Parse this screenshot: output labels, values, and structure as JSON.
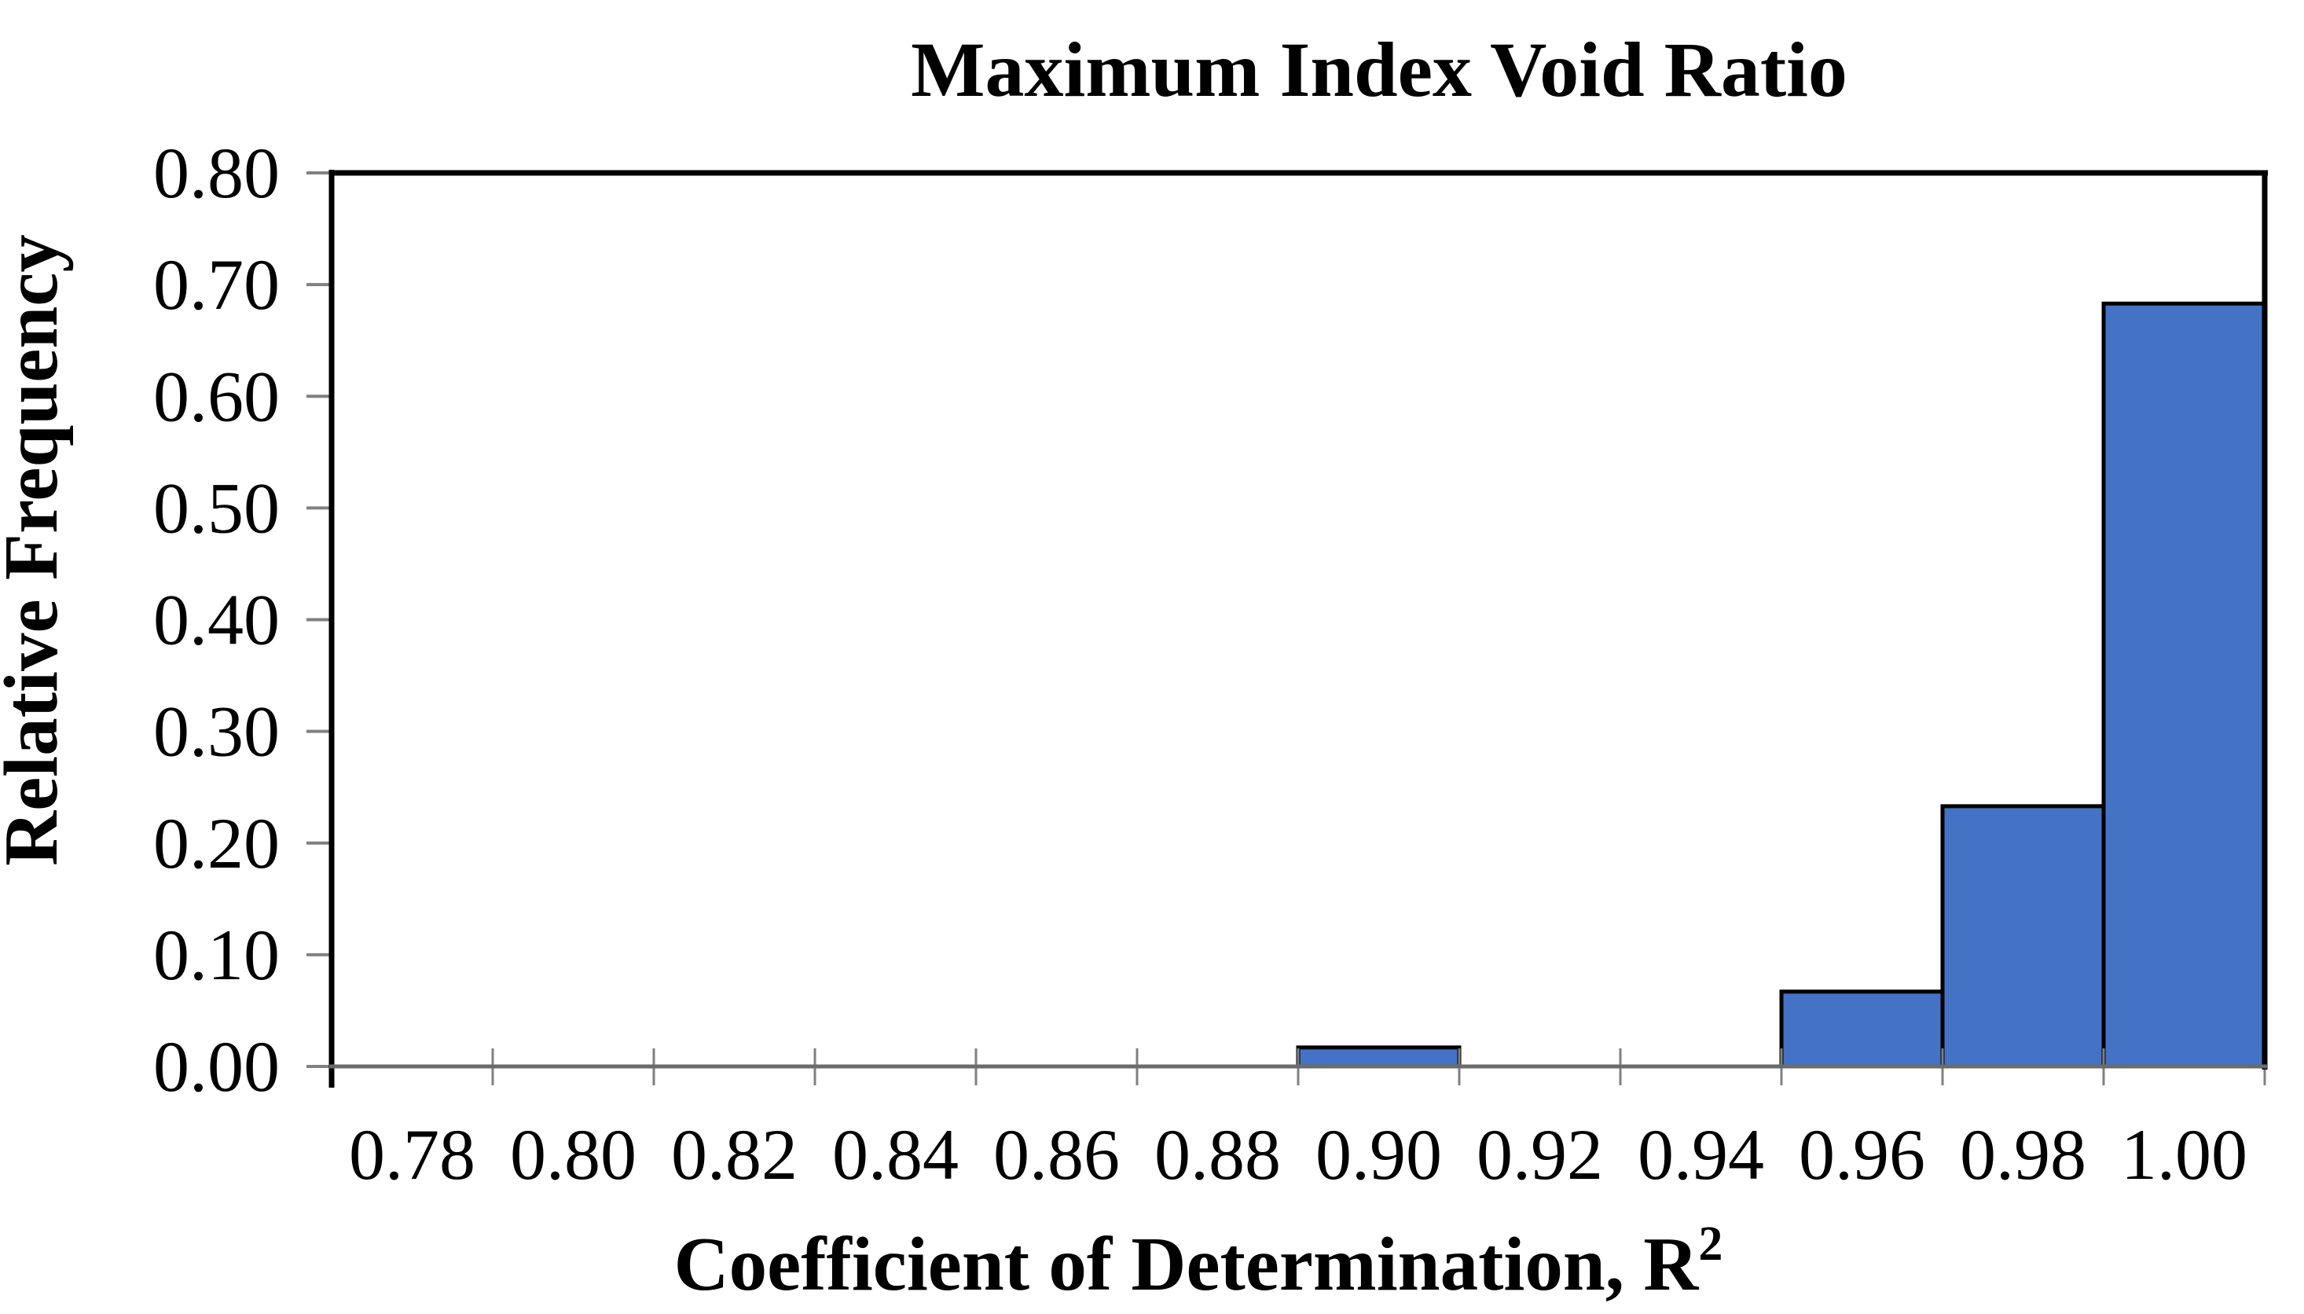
{
  "chart_data": {
    "type": "bar",
    "subtype": "histogram",
    "title": "Maximum Index Void Ratio",
    "xlabel": "Coefficient of Determination, R",
    "xlabel_superscript": "2",
    "ylabel": "Relative Frequency",
    "categories": [
      "0.78",
      "0.80",
      "0.82",
      "0.84",
      "0.86",
      "0.88",
      "0.90",
      "0.92",
      "0.94",
      "0.96",
      "0.98",
      "1.00"
    ],
    "values": [
      0,
      0,
      0,
      0,
      0,
      0,
      0.017,
      0,
      0,
      0.067,
      0.233,
      0.683
    ],
    "bin_width": 0.02,
    "y_ticks": [
      "0.00",
      "0.10",
      "0.20",
      "0.30",
      "0.40",
      "0.50",
      "0.60",
      "0.70",
      "0.80"
    ],
    "ylim": [
      0,
      0.8
    ],
    "grid": "off",
    "legend": "none",
    "colors": {
      "bar_fill": "#4472C4",
      "bar_border": "#000000",
      "plot_border": "#000000",
      "y_axis_line": "#000000",
      "x_axis_line": "#6b6b6b",
      "tick_color": "#808080",
      "text_color": "#000000",
      "background": "#ffffff"
    }
  }
}
